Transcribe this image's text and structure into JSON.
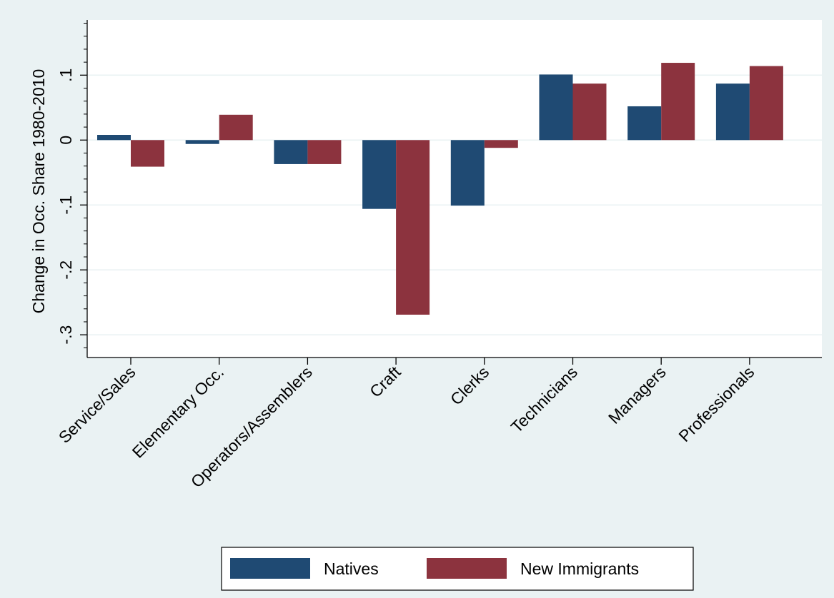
{
  "chart_data": {
    "type": "bar",
    "ylabel": "Change in Occ. Share 1980-2010",
    "categories": [
      "Service/Sales",
      "Elementary Occ.",
      "Operators/Assemblers",
      "Craft",
      "Clerks",
      "Technicians",
      "Managers",
      "Professionals"
    ],
    "series": [
      {
        "name": "Natives",
        "color": "#1f4a73",
        "values": [
          0.008,
          -0.006,
          -0.037,
          -0.106,
          -0.101,
          0.101,
          0.052,
          0.087
        ]
      },
      {
        "name": "New Immigrants",
        "color": "#8c333e",
        "values": [
          -0.041,
          0.039,
          -0.037,
          -0.269,
          -0.012,
          0.087,
          0.119,
          0.114
        ]
      }
    ],
    "ylim": [
      -0.335,
      0.185
    ],
    "yticks": [
      -0.3,
      -0.2,
      -0.1,
      0,
      0.1
    ],
    "ytick_labels": [
      "-.3",
      "-.2",
      "-.1",
      "0",
      ".1"
    ],
    "grid": true,
    "legend_position": "bottom",
    "colors": {
      "background": "#eaf2f3",
      "plot_area": "#ffffff",
      "gridline": "#eaf2f3"
    }
  }
}
